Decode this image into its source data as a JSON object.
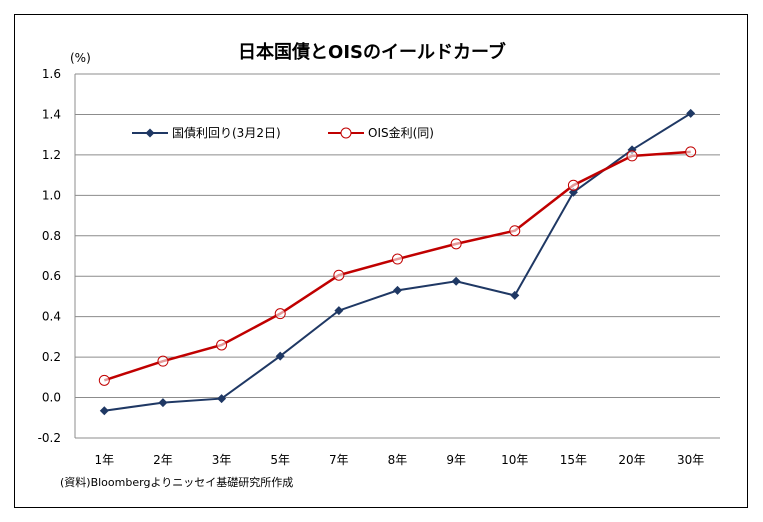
{
  "chart_data": {
    "type": "line",
    "title": "日本国債とOISのイールドカーブ",
    "ylabel": "(%)",
    "xlabel": "",
    "categories": [
      "1年",
      "2年",
      "3年",
      "5年",
      "7年",
      "8年",
      "9年",
      "10年",
      "15年",
      "20年",
      "30年"
    ],
    "ylim": [
      -0.2,
      1.6
    ],
    "yticks": [
      "1.6",
      "1.4",
      "1.2",
      "1.0",
      "0.8",
      "0.6",
      "0.4",
      "0.2",
      "0.0",
      "-0.2"
    ],
    "ytick_values": [
      1.6,
      1.4,
      1.2,
      1.0,
      0.8,
      0.6,
      0.4,
      0.2,
      0.0,
      -0.2
    ],
    "grid": true,
    "legend_position": "top-left",
    "series": [
      {
        "name": "国債利回り(3月2日)",
        "color": "#1f3864",
        "marker": "diamond",
        "values": [
          -0.065,
          -0.025,
          -0.005,
          0.205,
          0.43,
          0.53,
          0.575,
          0.505,
          1.015,
          1.225,
          1.405
        ]
      },
      {
        "name": "OIS金利(同)",
        "color": "#c00000",
        "marker": "circle-open",
        "values": [
          0.085,
          0.18,
          0.26,
          0.415,
          0.605,
          0.685,
          0.76,
          0.825,
          1.05,
          1.195,
          1.215
        ]
      }
    ],
    "source": "(資料)Bloombergよりニッセイ基礎研究所作成"
  }
}
